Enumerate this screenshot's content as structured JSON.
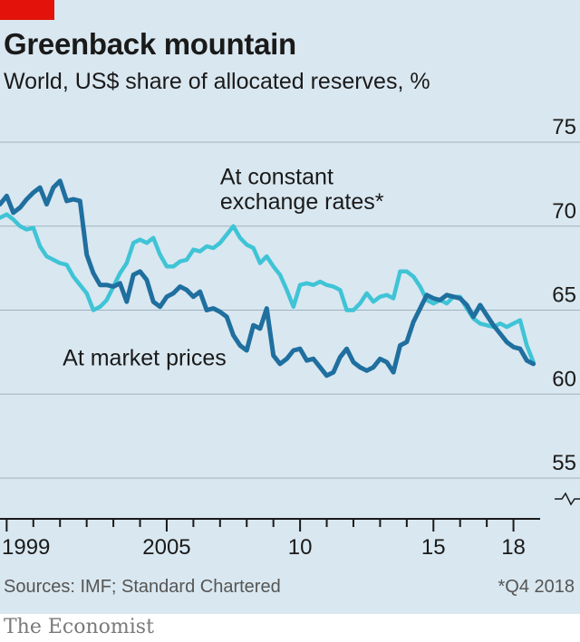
{
  "header": {
    "title": "Greenback mountain",
    "subtitle": "World, US$ share of allocated reserves, %"
  },
  "footer": {
    "source": "Sources: IMF; Standard Chartered",
    "footnote": "*Q4 2018",
    "brand": "The Economist"
  },
  "colors": {
    "accent": "#e3120b",
    "panel": "#d9e7f0",
    "market": "#1f6f9f",
    "constant": "#3fc4d6"
  },
  "chart_data": {
    "type": "line",
    "ylim": [
      52.5,
      77
    ],
    "xlim": [
      1998.75,
      2019.0
    ],
    "y_ticks": [
      {
        "value": 75,
        "label": "75"
      },
      {
        "value": 70,
        "label": "70"
      },
      {
        "value": 65,
        "label": "65"
      },
      {
        "value": 60,
        "label": "60"
      },
      {
        "value": 55,
        "label": "55"
      }
    ],
    "x_ticks": [
      {
        "value": 1999,
        "label": "1999"
      },
      {
        "value": 2005,
        "label": "2005"
      },
      {
        "value": 2010,
        "label": "10"
      },
      {
        "value": 2015,
        "label": "15"
      },
      {
        "value": 2018,
        "label": "18"
      }
    ],
    "axis_break": true,
    "grid": true,
    "series": [
      {
        "name": "At market prices",
        "x": [
          1998.75,
          1999.0,
          1999.25,
          1999.5,
          1999.75,
          2000.0,
          2000.25,
          2000.5,
          2000.75,
          2001.0,
          2001.25,
          2001.5,
          2001.75,
          2002.0,
          2002.25,
          2002.5,
          2002.75,
          2003.0,
          2003.25,
          2003.5,
          2003.75,
          2004.0,
          2004.25,
          2004.5,
          2004.75,
          2005.0,
          2005.25,
          2005.5,
          2005.75,
          2006.0,
          2006.25,
          2006.5,
          2006.75,
          2007.0,
          2007.25,
          2007.5,
          2007.75,
          2008.0,
          2008.25,
          2008.5,
          2008.75,
          2009.0,
          2009.25,
          2009.5,
          2009.75,
          2010.0,
          2010.25,
          2010.5,
          2010.75,
          2011.0,
          2011.25,
          2011.5,
          2011.75,
          2012.0,
          2012.25,
          2012.5,
          2012.75,
          2013.0,
          2013.25,
          2013.5,
          2013.75,
          2014.0,
          2014.25,
          2014.5,
          2014.75,
          2015.0,
          2015.25,
          2015.5,
          2015.75,
          2016.0,
          2016.25,
          2016.5,
          2016.75,
          2017.0,
          2017.25,
          2017.5,
          2017.75,
          2018.0,
          2018.25,
          2018.5,
          2018.75
        ],
        "y": [
          71.3,
          71.8,
          70.8,
          71.1,
          71.6,
          72.0,
          72.3,
          71.3,
          72.3,
          72.7,
          71.5,
          71.6,
          71.5,
          68.3,
          67.2,
          66.5,
          66.5,
          66.4,
          66.6,
          65.5,
          67.1,
          67.3,
          66.8,
          65.5,
          65.2,
          65.8,
          66.0,
          66.4,
          66.2,
          65.8,
          66.1,
          65.0,
          65.1,
          64.9,
          64.6,
          63.5,
          62.9,
          62.6,
          64.1,
          63.9,
          65.1,
          62.3,
          61.8,
          62.1,
          62.6,
          62.7,
          62.0,
          62.1,
          61.6,
          61.1,
          61.3,
          62.2,
          62.7,
          61.9,
          61.6,
          61.4,
          61.6,
          62.1,
          61.9,
          61.3,
          62.9,
          63.1,
          64.3,
          65.1,
          65.9,
          65.7,
          65.6,
          65.9,
          65.8,
          65.7,
          65.3,
          64.6,
          65.3,
          64.7,
          64.1,
          63.6,
          63.1,
          62.8,
          62.7,
          62.0,
          61.8
        ]
      },
      {
        "name": "At constant exchange rates*",
        "x": [
          1998.75,
          1999.0,
          1999.25,
          1999.5,
          1999.75,
          2000.0,
          2000.25,
          2000.5,
          2000.75,
          2001.0,
          2001.25,
          2001.5,
          2001.75,
          2002.0,
          2002.25,
          2002.5,
          2002.75,
          2003.0,
          2003.25,
          2003.5,
          2003.75,
          2004.0,
          2004.25,
          2004.5,
          2004.75,
          2005.0,
          2005.25,
          2005.5,
          2005.75,
          2006.0,
          2006.25,
          2006.5,
          2006.75,
          2007.0,
          2007.25,
          2007.5,
          2007.75,
          2008.0,
          2008.25,
          2008.5,
          2008.75,
          2009.0,
          2009.25,
          2009.5,
          2009.75,
          2010.0,
          2010.25,
          2010.5,
          2010.75,
          2011.0,
          2011.25,
          2011.5,
          2011.75,
          2012.0,
          2012.25,
          2012.5,
          2012.75,
          2013.0,
          2013.25,
          2013.5,
          2013.75,
          2014.0,
          2014.25,
          2014.5,
          2014.75,
          2015.0,
          2015.25,
          2015.5,
          2015.75,
          2016.0,
          2016.25,
          2016.5,
          2016.75,
          2017.0,
          2017.25,
          2017.5,
          2017.75,
          2018.0,
          2018.25,
          2018.5,
          2018.75
        ],
        "y": [
          70.5,
          70.7,
          70.4,
          70.0,
          69.8,
          69.9,
          68.8,
          68.2,
          68.0,
          67.8,
          67.7,
          67.0,
          66.5,
          66.0,
          65.0,
          65.2,
          65.6,
          66.4,
          67.2,
          67.8,
          69.0,
          69.2,
          69.0,
          69.3,
          68.3,
          67.6,
          67.6,
          67.9,
          68.0,
          68.6,
          68.5,
          68.8,
          68.7,
          69.0,
          69.5,
          70.0,
          69.3,
          68.9,
          68.7,
          67.8,
          68.2,
          67.6,
          67.1,
          66.2,
          65.2,
          66.5,
          66.6,
          66.5,
          66.7,
          66.5,
          66.4,
          66.2,
          65.0,
          65.0,
          65.4,
          66.0,
          65.5,
          65.8,
          65.9,
          65.7,
          67.3,
          67.3,
          67.0,
          66.4,
          65.6,
          65.4,
          65.6,
          65.4,
          65.8,
          65.8,
          65.1,
          64.5,
          64.2,
          64.1,
          64.0,
          64.2,
          64.0,
          64.2,
          64.4,
          62.9,
          61.9
        ]
      }
    ],
    "annotations": [
      {
        "text": "At constant",
        "x": 2007.0,
        "y": 72.5
      },
      {
        "text": "exchange rates*",
        "x": 2007.0,
        "y": 71.0
      },
      {
        "text": "At market prices",
        "x": 2001.1,
        "y": 61.7
      }
    ]
  }
}
